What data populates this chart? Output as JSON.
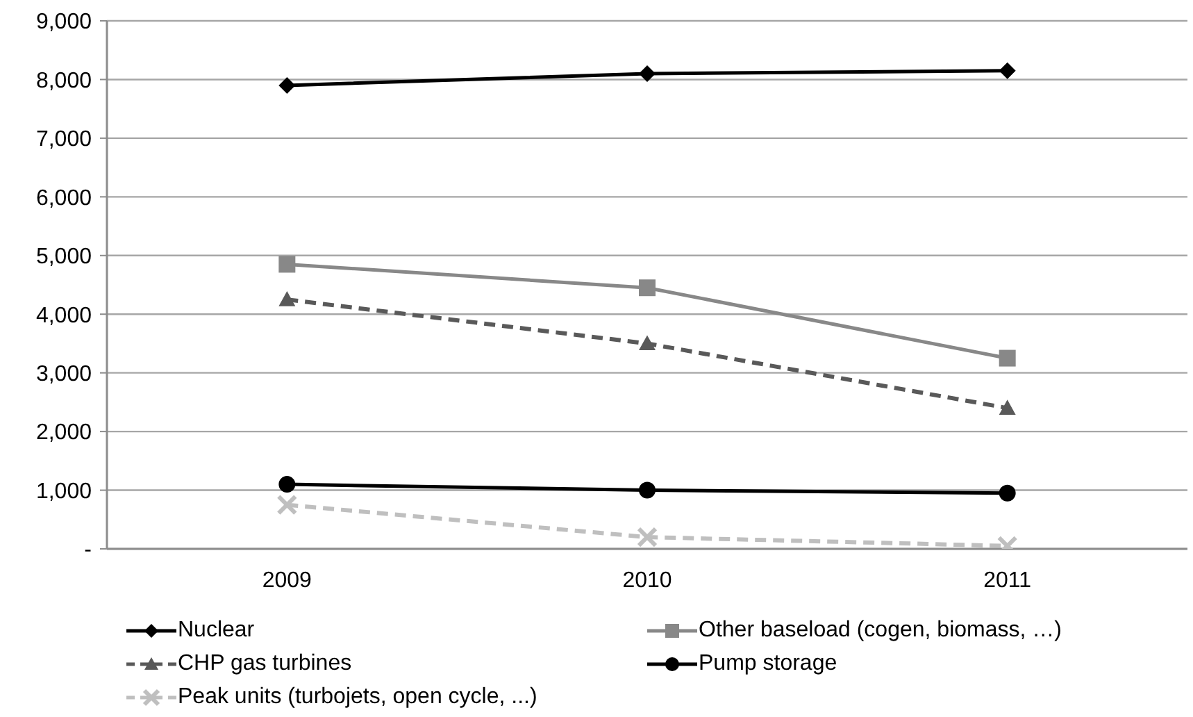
{
  "chart_data": {
    "type": "line",
    "categories": [
      "2009",
      "2010",
      "2011"
    ],
    "series": [
      {
        "name": "Nuclear",
        "color": "#000000",
        "values": [
          7900,
          8100,
          8150
        ],
        "marker": "diamond",
        "line_style": "solid"
      },
      {
        "name": "Other baseload (cogen, biomass, …)",
        "color": "#888888",
        "values": [
          4850,
          4450,
          3250
        ],
        "marker": "square",
        "line_style": "solid"
      },
      {
        "name": "CHP gas turbines",
        "color": "#595959",
        "values": [
          4250,
          3500,
          2400
        ],
        "marker": "triangle",
        "line_style": "dashed"
      },
      {
        "name": "Pump storage",
        "color": "#000000",
        "values": [
          1100,
          1000,
          950
        ],
        "marker": "circle",
        "line_style": "solid"
      },
      {
        "name": "Peak units (turbojets, open cycle, ...)",
        "color": "#bfbfbf",
        "values": [
          750,
          200,
          50
        ],
        "marker": "cross",
        "line_style": "dashed"
      }
    ],
    "ylim": [
      0,
      9000
    ],
    "yticks": [
      {
        "value": 0,
        "label": "-"
      },
      {
        "value": 1000,
        "label": "1,000"
      },
      {
        "value": 2000,
        "label": "2,000"
      },
      {
        "value": 3000,
        "label": "3,000"
      },
      {
        "value": 4000,
        "label": "4,000"
      },
      {
        "value": 5000,
        "label": "5,000"
      },
      {
        "value": 6000,
        "label": "6,000"
      },
      {
        "value": 7000,
        "label": "7,000"
      },
      {
        "value": 8000,
        "label": "8,000"
      },
      {
        "value": 9000,
        "label": "9,000"
      }
    ],
    "grid": "y",
    "legend": "bottom"
  }
}
